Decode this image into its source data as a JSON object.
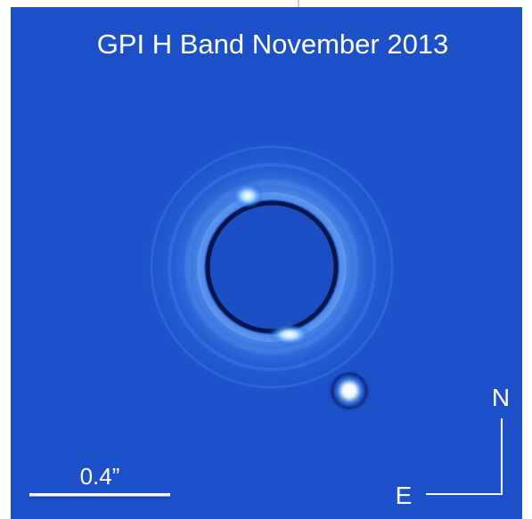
{
  "title": "GPI H Band November 2013",
  "scale_bar": {
    "label": "0.4”"
  },
  "compass": {
    "north": "N",
    "east": "E"
  }
}
